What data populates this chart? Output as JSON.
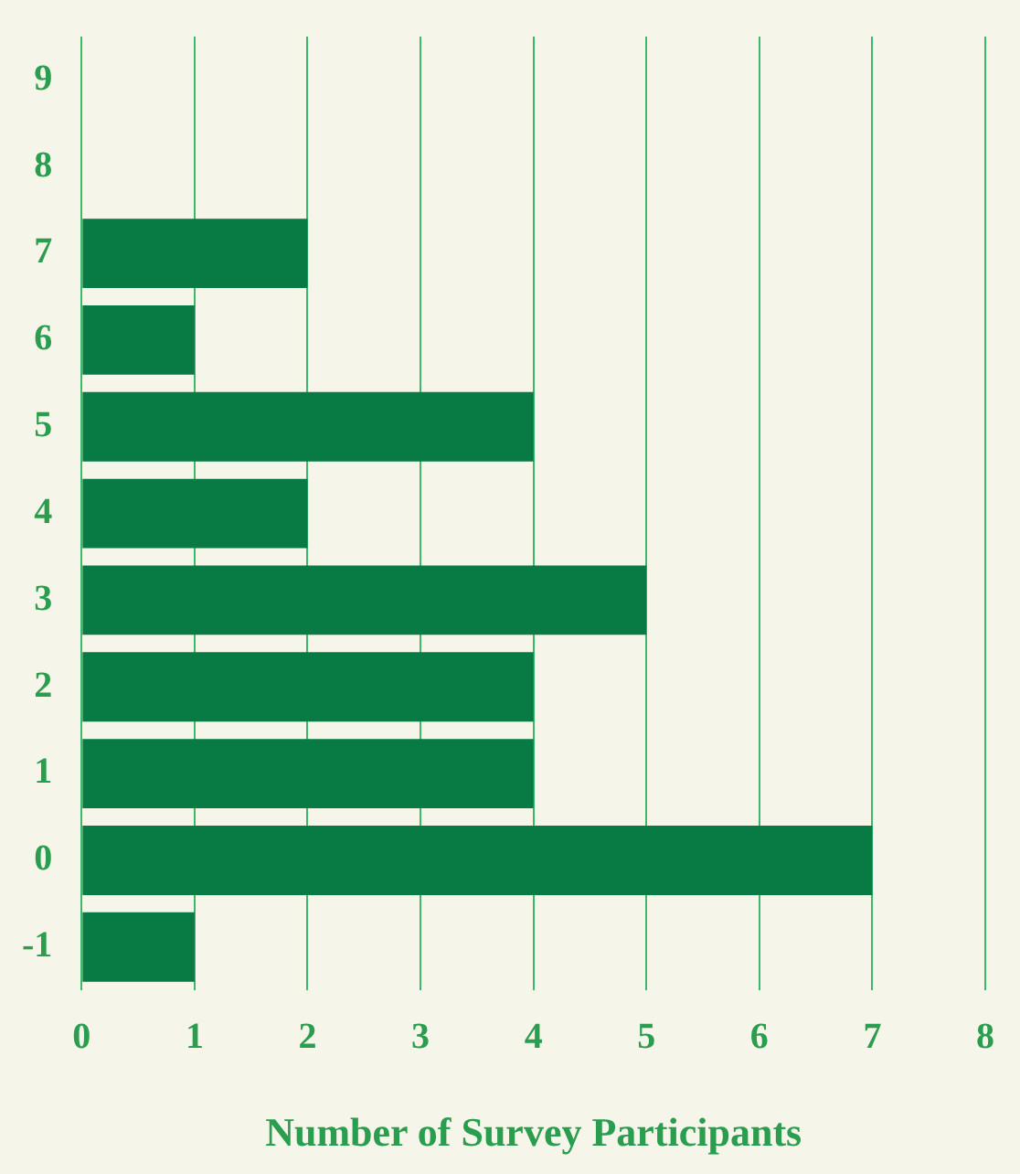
{
  "chart_data": {
    "type": "bar",
    "orientation": "horizontal",
    "xlabel": "Number of Survey Participants",
    "categories": [
      "9",
      "8",
      "7",
      "6",
      "5",
      "4",
      "3",
      "2",
      "1",
      "0",
      "-1"
    ],
    "values": [
      0,
      0,
      2,
      1,
      4,
      2,
      5,
      4,
      4,
      7,
      1
    ],
    "color": "#087a44",
    "xlim": [
      0,
      8
    ],
    "xticks": [
      0,
      1,
      2,
      3,
      4,
      5,
      6,
      7,
      8
    ],
    "grid": "x",
    "legend": false
  }
}
